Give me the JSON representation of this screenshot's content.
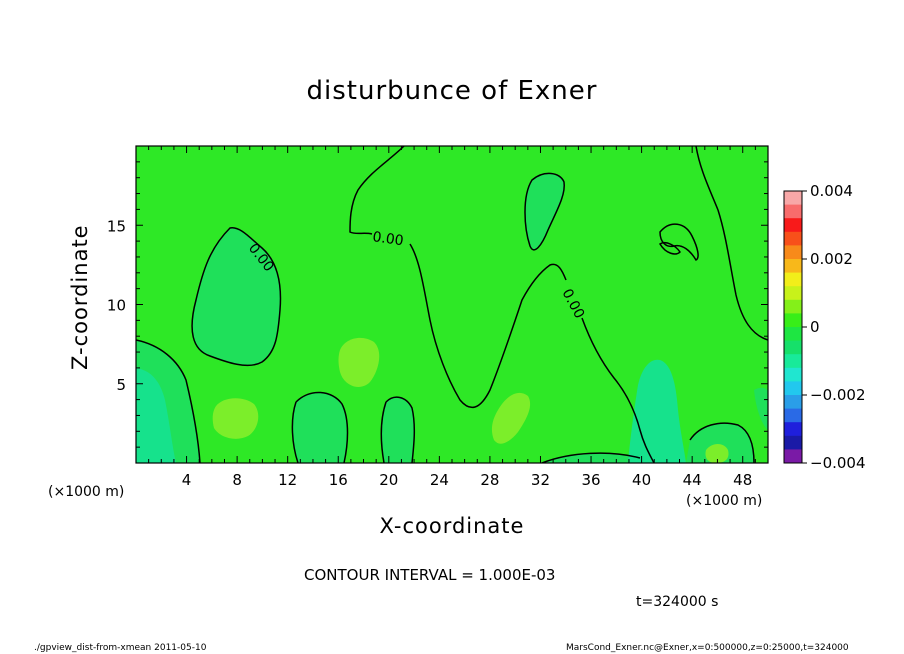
{
  "chart_data": {
    "type": "heatmap",
    "title": "disturbunce of Exner",
    "xlabel": "X-coordinate",
    "ylabel": "Z-coordinate",
    "x_unit_left": "(×1000 m)",
    "x_unit_right": "(×1000 m)",
    "xlim": [
      0,
      50
    ],
    "ylim": [
      0,
      20
    ],
    "xticks": [
      4,
      8,
      12,
      16,
      20,
      24,
      28,
      32,
      36,
      40,
      44,
      48
    ],
    "yticks": [
      5,
      10,
      15
    ],
    "contour_labels": [
      "0.00",
      "0.00",
      "0.00"
    ],
    "contour_interval_text": "CONTOUR INTERVAL = 1.000E-03",
    "time_text": "t=324000 s",
    "colorbar": {
      "range": [
        -0.004,
        0.004
      ],
      "tick_labels": [
        "0.004",
        "0.002",
        "0",
        "−0.002",
        "−0.004"
      ],
      "tick_values": [
        0.004,
        0.002,
        0,
        -0.002,
        -0.004
      ],
      "colors": [
        "#7a1aa6",
        "#1a1aa6",
        "#1f1fdc",
        "#2a6ae6",
        "#2a9ee8",
        "#22c8ee",
        "#20e6d0",
        "#18ea9a",
        "#16e06a",
        "#1ee642",
        "#38ee18",
        "#84f019",
        "#c8f21a",
        "#f2ee1a",
        "#f8b81a",
        "#f88a1a",
        "#f8501a",
        "#f81a1a",
        "#f86c6c",
        "#f8a8a8"
      ],
      "colors_top_to_bottom": [
        "#f8a8a8",
        "#f86c6c",
        "#f81a1a",
        "#f8501a",
        "#f88a1a",
        "#f8b81a",
        "#f2ee1a",
        "#c8f21a",
        "#84f019",
        "#38ee18",
        "#1ee642",
        "#16e06a",
        "#18ea9a",
        "#20e6d0",
        "#22c8ee",
        "#2a9ee8",
        "#2a6ae6",
        "#1f1fdc",
        "#1a1aa6",
        "#7a1aa6"
      ]
    },
    "field_colors": {
      "background": "#2ee826",
      "slightly_negative": "#1fe05a",
      "negative": "#16e28c",
      "slightly_positive": "#7cee2a"
    },
    "grid": false
  },
  "footer": {
    "left": "./gpview_dist-from-xmean  2011-05-10",
    "right": "MarsCond_Exner.nc@Exner,x=0:500000,z=0:25000,t=324000"
  }
}
